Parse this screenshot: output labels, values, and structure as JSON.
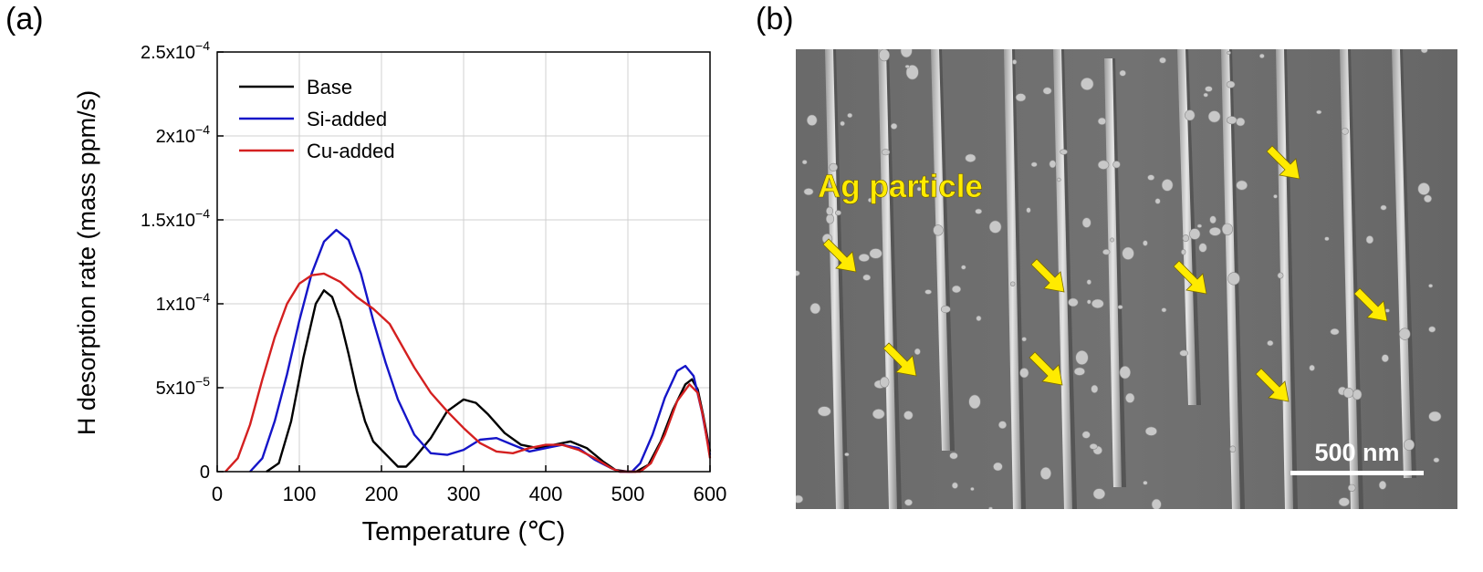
{
  "panel_a": {
    "label": "(a)"
  },
  "panel_b": {
    "label": "(b)",
    "annotation": "Ag particle",
    "scale_bar_label": "500 nm",
    "arrow_color": "#ffeb00",
    "annotation_color": "#ffeb00"
  },
  "chart_data": {
    "type": "line",
    "title": "",
    "xlabel": "Temperature (℃)",
    "ylabel": "H desorption rate (mass ppm/s)",
    "xlim": [
      0,
      600
    ],
    "ylim": [
      0,
      0.00025
    ],
    "x_ticks": [
      0,
      100,
      200,
      300,
      400,
      500,
      600
    ],
    "y_ticks": [
      {
        "value": 0,
        "mantissa": "0",
        "exp": ""
      },
      {
        "value": 5e-05,
        "mantissa": "5x10",
        "exp": "−5"
      },
      {
        "value": 0.0001,
        "mantissa": "1x10",
        "exp": "−4"
      },
      {
        "value": 0.00015,
        "mantissa": "1.5x10",
        "exp": "−4"
      },
      {
        "value": 0.0002,
        "mantissa": "2x10",
        "exp": "−4"
      },
      {
        "value": 0.00025,
        "mantissa": "2.5x10",
        "exp": "−4"
      }
    ],
    "grid": true,
    "legend_position": "top-left",
    "series": [
      {
        "name": "Base",
        "color": "#000000",
        "points": [
          [
            60,
            0
          ],
          [
            75,
            5e-06
          ],
          [
            90,
            3e-05
          ],
          [
            105,
            6.8e-05
          ],
          [
            120,
            0.0001
          ],
          [
            130,
            0.000108
          ],
          [
            140,
            0.000104
          ],
          [
            150,
            9e-05
          ],
          [
            160,
            7e-05
          ],
          [
            170,
            4.8e-05
          ],
          [
            180,
            3e-05
          ],
          [
            190,
            1.8e-05
          ],
          [
            200,
            1.3e-05
          ],
          [
            210,
            8e-06
          ],
          [
            220,
            3e-06
          ],
          [
            230,
            3e-06
          ],
          [
            240,
            8e-06
          ],
          [
            260,
            2e-05
          ],
          [
            280,
            3.6e-05
          ],
          [
            300,
            4.3e-05
          ],
          [
            315,
            4.1e-05
          ],
          [
            330,
            3.4e-05
          ],
          [
            350,
            2.3e-05
          ],
          [
            370,
            1.6e-05
          ],
          [
            390,
            1.4e-05
          ],
          [
            410,
            1.6e-05
          ],
          [
            430,
            1.8e-05
          ],
          [
            450,
            1.4e-05
          ],
          [
            470,
            6e-06
          ],
          [
            485,
            1e-06
          ],
          [
            500,
            0
          ],
          [
            510,
            0
          ],
          [
            525,
            4e-06
          ],
          [
            540,
            1.8e-05
          ],
          [
            555,
            3.7e-05
          ],
          [
            570,
            5.2e-05
          ],
          [
            578,
            5.5e-05
          ],
          [
            585,
            4.9e-05
          ],
          [
            592,
            3.3e-05
          ],
          [
            600,
            1.2e-05
          ]
        ]
      },
      {
        "name": "Si-added",
        "color": "#1515c8",
        "points": [
          [
            40,
            0
          ],
          [
            55,
            8e-06
          ],
          [
            70,
            3e-05
          ],
          [
            85,
            5.8e-05
          ],
          [
            100,
            9e-05
          ],
          [
            115,
            0.000118
          ],
          [
            130,
            0.000137
          ],
          [
            145,
            0.000144
          ],
          [
            160,
            0.000138
          ],
          [
            175,
            0.000118
          ],
          [
            190,
            9e-05
          ],
          [
            205,
            6.5e-05
          ],
          [
            220,
            4.3e-05
          ],
          [
            240,
            2.2e-05
          ],
          [
            260,
            1.1e-05
          ],
          [
            280,
            1e-05
          ],
          [
            300,
            1.3e-05
          ],
          [
            320,
            1.9e-05
          ],
          [
            340,
            2e-05
          ],
          [
            360,
            1.6e-05
          ],
          [
            380,
            1.2e-05
          ],
          [
            400,
            1.4e-05
          ],
          [
            420,
            1.6e-05
          ],
          [
            440,
            1.4e-05
          ],
          [
            460,
            7e-06
          ],
          [
            480,
            2e-06
          ],
          [
            490,
            0
          ],
          [
            505,
            0
          ],
          [
            515,
            5e-06
          ],
          [
            530,
            2.2e-05
          ],
          [
            545,
            4.4e-05
          ],
          [
            560,
            6e-05
          ],
          [
            570,
            6.3e-05
          ],
          [
            580,
            5.7e-05
          ],
          [
            590,
            3.6e-05
          ],
          [
            600,
            1e-05
          ]
        ]
      },
      {
        "name": "Cu-added",
        "color": "#d42020",
        "points": [
          [
            10,
            0
          ],
          [
            25,
            8e-06
          ],
          [
            40,
            2.8e-05
          ],
          [
            55,
            5.5e-05
          ],
          [
            70,
            8e-05
          ],
          [
            85,
            0.0001
          ],
          [
            100,
            0.000112
          ],
          [
            115,
            0.000117
          ],
          [
            130,
            0.000118
          ],
          [
            150,
            0.000113
          ],
          [
            170,
            0.000104
          ],
          [
            190,
            9.7e-05
          ],
          [
            210,
            8.8e-05
          ],
          [
            225,
            7.5e-05
          ],
          [
            240,
            6.2e-05
          ],
          [
            260,
            4.7e-05
          ],
          [
            280,
            3.6e-05
          ],
          [
            300,
            2.6e-05
          ],
          [
            320,
            1.7e-05
          ],
          [
            340,
            1.2e-05
          ],
          [
            360,
            1.1e-05
          ],
          [
            380,
            1.4e-05
          ],
          [
            400,
            1.6e-05
          ],
          [
            420,
            1.6e-05
          ],
          [
            440,
            1.3e-05
          ],
          [
            460,
            8e-06
          ],
          [
            480,
            2e-06
          ],
          [
            490,
            0
          ],
          [
            515,
            0
          ],
          [
            528,
            5e-06
          ],
          [
            545,
            2.2e-05
          ],
          [
            560,
            4.2e-05
          ],
          [
            575,
            5.2e-05
          ],
          [
            585,
            4.7e-05
          ],
          [
            592,
            3.2e-05
          ],
          [
            600,
            8e-06
          ]
        ]
      }
    ]
  }
}
